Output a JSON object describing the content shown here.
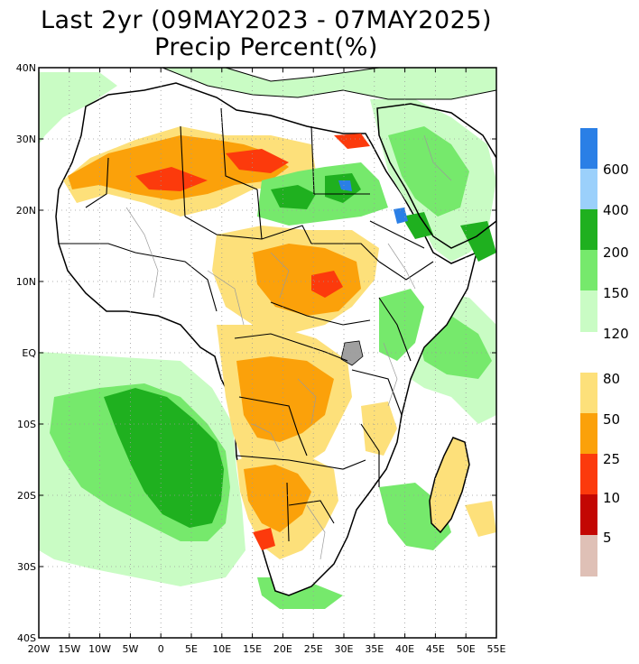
{
  "title": {
    "line1": "Last 2yr (09MAY2023 - 07MAY2025)",
    "line2": "Precip Percent(%)"
  },
  "map": {
    "lat_labels": [
      "40N",
      "30N",
      "20N",
      "10N",
      "EQ",
      "10S",
      "20S",
      "30S",
      "40S"
    ],
    "lon_labels": [
      "20W",
      "15W",
      "10W",
      "5W",
      "0",
      "5E",
      "10E",
      "15E",
      "20E",
      "25E",
      "30E",
      "35E",
      "40E",
      "45E",
      "50E",
      "55E"
    ],
    "lat_range": [
      -40,
      40
    ],
    "lon_range": [
      -20,
      55
    ],
    "grid": "dotted"
  },
  "colorbar": {
    "wet": [
      {
        "label": "600",
        "color": "#2a7fe6"
      },
      {
        "label": "400",
        "color": "#9bd0fb"
      },
      {
        "label": "200",
        "color": "#1fb01f"
      },
      {
        "label": "150",
        "color": "#76e96c"
      },
      {
        "label": "120",
        "color": "#c9fcc4"
      }
    ],
    "dry": [
      {
        "label": "80",
        "color": "#fde07a"
      },
      {
        "label": "50",
        "color": "#fba10a"
      },
      {
        "label": "25",
        "color": "#fc3a0c"
      },
      {
        "label": "10",
        "color": "#c30703"
      },
      {
        "label": "5",
        "color": "#dfc0b6"
      }
    ]
  }
}
